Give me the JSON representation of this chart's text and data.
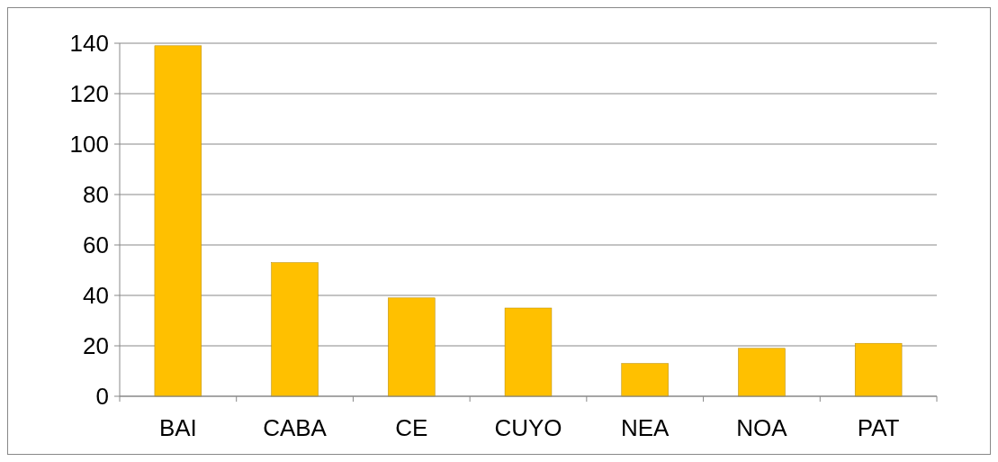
{
  "chart_data": {
    "type": "bar",
    "categories": [
      "BAI",
      "CABA",
      "CE",
      "CUYO",
      "NEA",
      "NOA",
      "PAT"
    ],
    "values": [
      139,
      53,
      39,
      35,
      13,
      19,
      21
    ],
    "color": "#ffc000",
    "ylim": [
      0,
      140
    ],
    "yticks": [
      0,
      20,
      40,
      60,
      80,
      100,
      120,
      140
    ],
    "grid": "y"
  }
}
